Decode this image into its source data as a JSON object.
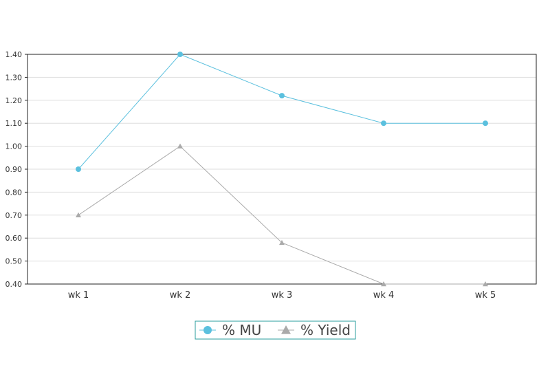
{
  "chart_data": {
    "type": "line",
    "categories": [
      "wk 1",
      "wk 2",
      "wk 3",
      "wk 4",
      "wk 5"
    ],
    "series": [
      {
        "name": "% MU",
        "values": [
          0.9,
          1.4,
          1.22,
          1.1,
          1.1
        ],
        "color": "#5bc0de",
        "marker": "circle"
      },
      {
        "name": "% Yield",
        "values": [
          0.7,
          1.0,
          0.58,
          0.4,
          0.4
        ],
        "color": "#aaaaaa",
        "marker": "triangle"
      }
    ],
    "y_ticks": [
      "0.40",
      "0.50",
      "0.60",
      "0.70",
      "0.80",
      "0.90",
      "1.00",
      "1.10",
      "1.20",
      "1.30",
      "1.40"
    ],
    "ylim": [
      0.4,
      1.4
    ],
    "grid": true,
    "legend_position": "bottom-center",
    "legend_border_color": "#2a9d9d",
    "title": "",
    "xlabel": "",
    "ylabel": ""
  }
}
